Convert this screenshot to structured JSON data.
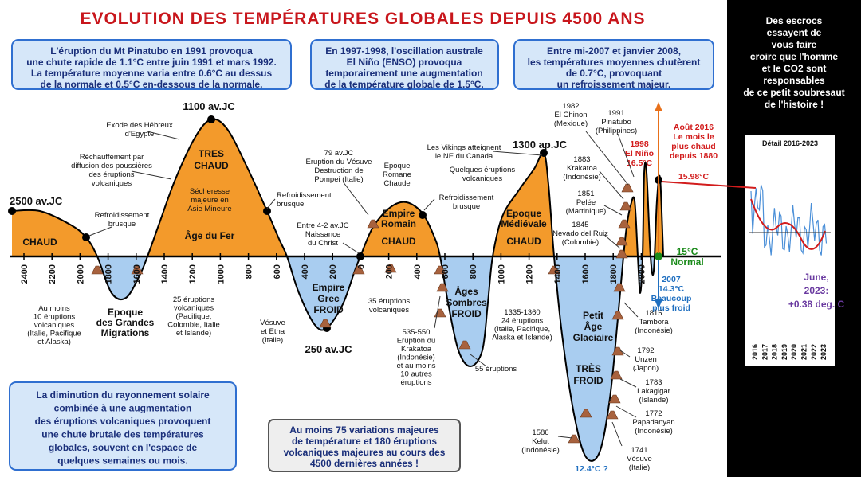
{
  "title": "EVOLUTION DES TEMPÉRATURES GLOBALES DEPUIS 4500 ANS",
  "info_boxes": [
    {
      "lines": [
        "L'éruption du Mt Pinatubo en 1991 provoqua",
        "une chute rapide de 1.1°C entre juin 1991 et mars 1992.",
        "La température moyenne varia entre 0.6°C au dessus",
        "de la normale et 0.5°C en-dessous de la normale."
      ]
    },
    {
      "lines": [
        "En 1997-1998, l'oscillation australe",
        "El Niño (ENSO) provoqua",
        "temporairement une augmentation",
        "de la température globale de 1.5°C."
      ]
    },
    {
      "lines": [
        "Entre mi-2007 et janvier 2008,",
        "les températures moyennes chutèrent",
        "de 0.7°C, provoquant",
        "un refroissement majeur."
      ]
    },
    {
      "lines": [
        "La diminution du rayonnement solaire",
        "combinée à une augmentation",
        "des éruptions volcaniques provoquent",
        "une chute brutale des températures",
        "globales, souvent en l'espace de",
        "quelques semaines ou mois."
      ]
    },
    {
      "lines": [
        "Au moins 75 variations majeures",
        "de température et 180 éruptions",
        "volcaniques majeures au cours des",
        "4500 dernières années !"
      ]
    }
  ],
  "side_panel": {
    "lines": [
      "Des escrocs",
      "essayent de",
      "vous faire",
      "croire que l'homme",
      "et le CO2 sont",
      "responsables",
      "de ce petit soubresaut",
      "de l'histoire !"
    ]
  },
  "inset": {
    "title": "Détail 2016-2023",
    "years": [
      "2016",
      "2017",
      "2018",
      "2019",
      "2020",
      "2021",
      "2022",
      "2023"
    ],
    "note": [
      "June,",
      "2023:",
      "+0.38 deg. C"
    ]
  },
  "axis_ticks": [
    "2400",
    "2200",
    "2000",
    "1800",
    "1600",
    "1400",
    "1200",
    "1000",
    "800",
    "600",
    "400",
    "200",
    "0",
    "200",
    "400",
    "600",
    "800",
    "1000",
    "1200",
    "1400",
    "1600",
    "1800",
    "2000"
  ],
  "annotations": [
    {
      "lines": [
        "2500 av.JC"
      ]
    },
    {
      "lines": [
        "1100 av.JC"
      ]
    },
    {
      "lines": [
        "250 av.JC"
      ]
    },
    {
      "lines": [
        "1300 ap.JC"
      ]
    },
    {
      "lines": [
        "12.4°C ?"
      ]
    },
    {
      "lines": [
        "CHAUD"
      ]
    },
    {
      "lines": [
        "TRES",
        "CHAUD"
      ]
    },
    {
      "lines": [
        "Sécheresse",
        "majeure en",
        "Asie Mineure"
      ]
    },
    {
      "lines": [
        "Âge du Fer"
      ]
    },
    {
      "lines": [
        "Epoque",
        "des Grandes",
        "Migrations"
      ]
    },
    {
      "lines": [
        "Empire",
        "Grec",
        "FROID"
      ]
    },
    {
      "lines": [
        "Empire",
        "Romain"
      ]
    },
    {
      "lines": [
        "CHAUD"
      ]
    },
    {
      "lines": [
        "Âges",
        "Sombres",
        "FROID"
      ]
    },
    {
      "lines": [
        "Epoque",
        "Médiévale"
      ]
    },
    {
      "lines": [
        "CHAUD"
      ]
    },
    {
      "lines": [
        "Petit",
        "Âge",
        "Glaciaire"
      ]
    },
    {
      "lines": [
        "TRÈS",
        "FROID"
      ]
    },
    {
      "lines": [
        "Exode des Hébreux",
        "d'Egypte"
      ]
    },
    {
      "lines": [
        "Réchauffement par",
        "diffusion des poussières",
        "des éruptions",
        "volcaniques"
      ]
    },
    {
      "lines": [
        "Refroidissement",
        "brusque"
      ]
    },
    {
      "lines": [
        "Refroidissement",
        "brusque"
      ]
    },
    {
      "lines": [
        "79 av.JC",
        "Eruption du Vésuve",
        "Destruction de",
        "Pompei (Italie)"
      ]
    },
    {
      "lines": [
        "Epoque",
        "Romane",
        "Chaude"
      ]
    },
    {
      "lines": [
        "Les Vikings atteignent",
        "le NE du Canada"
      ]
    },
    {
      "lines": [
        "Quelques éruptions",
        "volcaniques"
      ]
    },
    {
      "lines": [
        "Refroidissement",
        "brusque"
      ]
    },
    {
      "lines": [
        "Entre 4-2 av.JC",
        "Naissance",
        "du Christ"
      ]
    },
    {
      "lines": [
        "Au moins",
        "10 éruptions",
        "volcaniques",
        "(Italie, Pacifique",
        "et Alaska)"
      ]
    },
    {
      "lines": [
        "25 éruptions",
        "volcaniques",
        "(Pacifique,",
        "Colombie, Italie",
        "et Islande)"
      ]
    },
    {
      "lines": [
        "Vésuve",
        "et Etna",
        "(Italie)"
      ]
    },
    {
      "lines": [
        "35 éruptions",
        "volcaniques"
      ]
    },
    {
      "lines": [
        "535-550",
        "Eruption du",
        "Krakatoa",
        "(Indonésie)",
        "et au moins",
        "10 autres",
        "éruptions"
      ]
    },
    {
      "lines": [
        "55 éruptions"
      ]
    },
    {
      "lines": [
        "1335-1360",
        "24 éruptions",
        "(Italie, Pacifique,",
        "Alaska et Islande)"
      ]
    },
    {
      "lines": [
        "1982",
        "El Chinon",
        "(Mexique)"
      ]
    },
    {
      "lines": [
        "1991",
        "Pinatubo",
        "(Philippines)"
      ]
    },
    {
      "lines": [
        "1883",
        "Krakatoa",
        "(Indonésie)"
      ]
    },
    {
      "lines": [
        "1851",
        "Pelée",
        "(Martinique)"
      ]
    },
    {
      "lines": [
        "1845",
        "Nevado del Ruiz",
        "(Colombie)"
      ]
    },
    {
      "lines": [
        "1998",
        "El Niño",
        "16.5°C"
      ]
    },
    {
      "lines": [
        "Août 2016",
        "Le mois le",
        "plus chaud",
        "depuis 1880"
      ]
    },
    {
      "lines": [
        "15.98°C"
      ]
    },
    {
      "lines": [
        "15°C",
        "Normal"
      ]
    },
    {
      "lines": [
        "2007",
        "14.3°C",
        "Beaucoup",
        "plus froid"
      ]
    },
    {
      "lines": [
        "1815",
        "Tambora",
        "(Indonésie)"
      ]
    },
    {
      "lines": [
        "1792",
        "Unzen",
        "(Japon)"
      ]
    },
    {
      "lines": [
        "1783",
        "Lakagigar",
        "(Islande)"
      ]
    },
    {
      "lines": [
        "1772",
        "Papadanyan",
        "(Indonésie)"
      ]
    },
    {
      "lines": [
        "1741",
        "Vésuve",
        "(Italie)"
      ]
    },
    {
      "lines": [
        "1586",
        "Kelut",
        "(Indonésie)"
      ]
    }
  ]
}
